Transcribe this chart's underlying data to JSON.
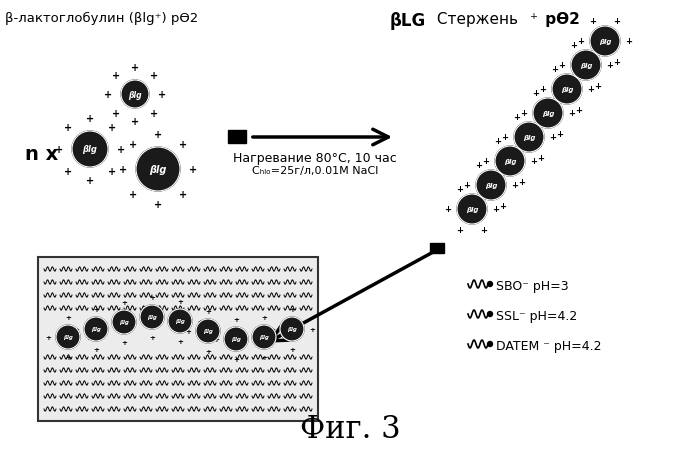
{
  "title": "β-лактоглобулин (βlg⁺) рѲ2",
  "title_right": "βLG Стержень⁺ рѲ2",
  "arrow_label1": "Нагревание 80°C, 10 час",
  "arrow_label2": "Cₕₗₒ=25г/л,0.01M NaCl",
  "emulsifier_labels": [
    "SBO⁻ pH=3",
    "SSL⁻ pH=4.2",
    "DATEM ⁻ pH=4.2"
  ],
  "fig_label": "Фиг. 3",
  "bg_color": "#ffffff",
  "sphere_color": "#1a1a1a",
  "sphere_text": "βlg",
  "n_label": "n x"
}
